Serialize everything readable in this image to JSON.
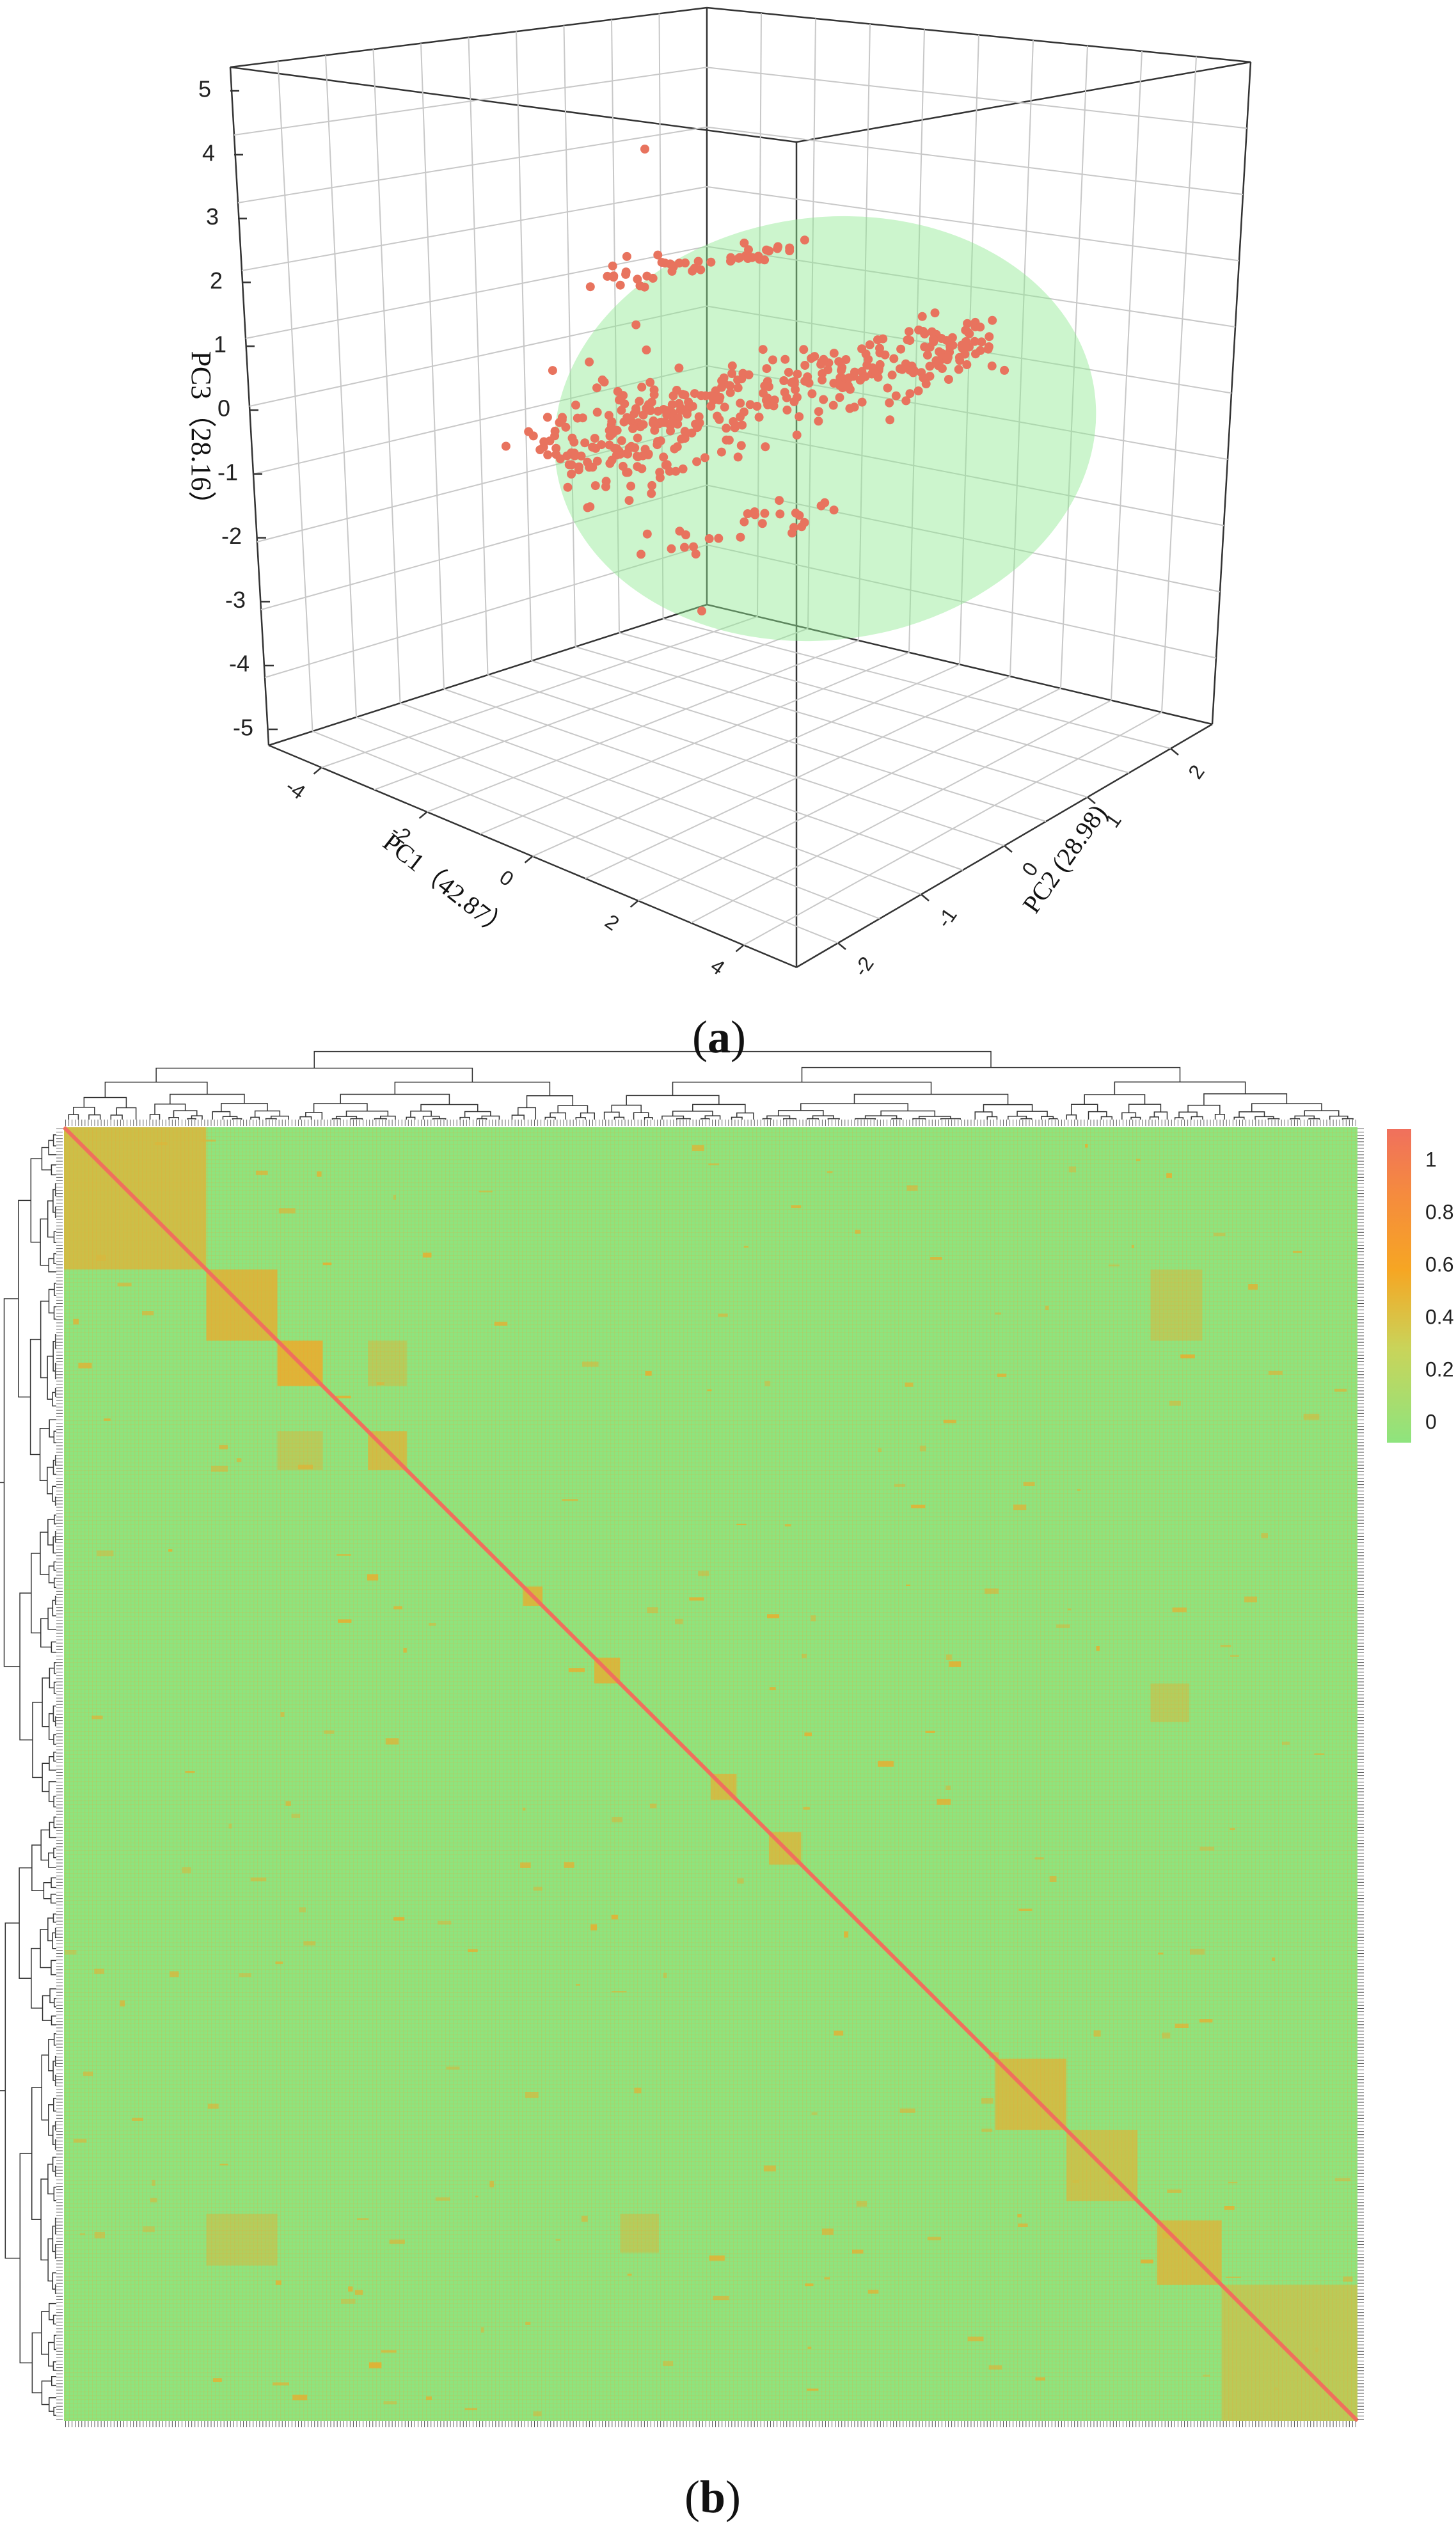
{
  "figure": {
    "panel_a_label": "a",
    "panel_b_label": "b"
  },
  "chart_data": [
    {
      "type": "scatter",
      "panel": "a",
      "projection": "3d",
      "xlabel": "PC1（42.87）",
      "ylabel": "PC2 (28.98)",
      "zlabel": "PC3（28.16）",
      "x_ticks": [
        "-4",
        "-2",
        "0",
        "2",
        "4"
      ],
      "y_ticks": [
        "-2",
        "-1",
        "0",
        "1",
        "2"
      ],
      "z_ticks": [
        "-5",
        "-4",
        "-3",
        "-2",
        "-1",
        "0",
        "1",
        "2",
        "3",
        "4",
        "5"
      ],
      "xlim": [
        -5,
        5
      ],
      "ylim": [
        -2.5,
        2.5
      ],
      "zlim": [
        -5,
        5
      ],
      "grid": true,
      "point_color": "#e8735e",
      "ellipse_color": "#8ee890",
      "points_description": "about 400 samples; upper arc band near PC3 2 to 2.5, main diagonal cloud PC3 -1 to 1, small lower group near PC3 -2, outliers at PC3 4 and -3.3"
    },
    {
      "type": "heatmap",
      "panel": "b",
      "matrix": "kinship / correlation among ~400 samples with hierarchical clustering dendrograms on top and left",
      "colorbar_ticks": [
        "1",
        "0.8",
        "0.6",
        "0.4",
        "0.2",
        "0"
      ],
      "vmin": 0,
      "vmax": 1,
      "colors": {
        "low": "#8ee47e",
        "mid": "#f6a623",
        "high": "#f0705d"
      },
      "diagonal_blocks": [
        {
          "start": 0.0,
          "end": 0.11,
          "value": 0.35
        },
        {
          "start": 0.11,
          "end": 0.165,
          "value": 0.4
        },
        {
          "start": 0.165,
          "end": 0.2,
          "value": 0.45
        },
        {
          "start": 0.235,
          "end": 0.265,
          "value": 0.35
        },
        {
          "start": 0.355,
          "end": 0.37,
          "value": 0.4
        },
        {
          "start": 0.41,
          "end": 0.43,
          "value": 0.4
        },
        {
          "start": 0.5,
          "end": 0.52,
          "value": 0.35
        },
        {
          "start": 0.545,
          "end": 0.57,
          "value": 0.35
        },
        {
          "start": 0.72,
          "end": 0.775,
          "value": 0.35
        },
        {
          "start": 0.775,
          "end": 0.83,
          "value": 0.3
        },
        {
          "start": 0.845,
          "end": 0.895,
          "value": 0.35
        },
        {
          "start": 0.895,
          "end": 1.0,
          "value": 0.25
        }
      ]
    }
  ]
}
